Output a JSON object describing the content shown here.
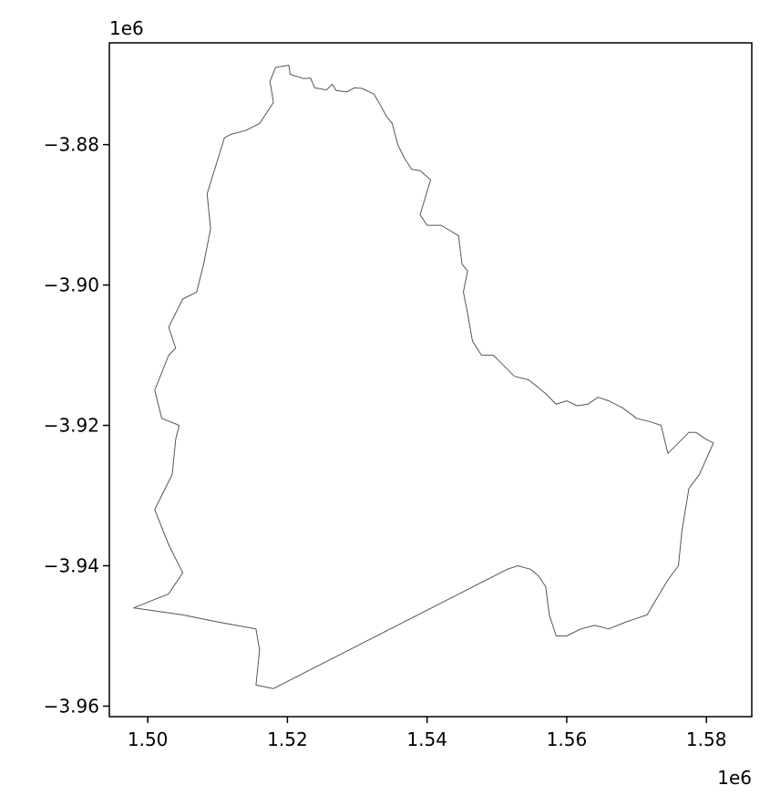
{
  "chart_data": {
    "type": "map",
    "x_offset_label": "1e6",
    "y_offset_label": "1e6",
    "xlim": [
      1.4945,
      1.5865
    ],
    "ylim": [
      -3.9615,
      -3.8655
    ],
    "x_ticks": [
      {
        "value": 1.5,
        "label": "1.50"
      },
      {
        "value": 1.52,
        "label": "1.52"
      },
      {
        "value": 1.54,
        "label": "1.54"
      },
      {
        "value": 1.56,
        "label": "1.56"
      },
      {
        "value": 1.58,
        "label": "1.58"
      }
    ],
    "y_ticks": [
      {
        "value": -3.88,
        "label": "−3.88"
      },
      {
        "value": -3.9,
        "label": "−3.90"
      },
      {
        "value": -3.92,
        "label": "−3.92"
      },
      {
        "value": -3.94,
        "label": "−3.94"
      },
      {
        "value": -3.96,
        "label": "−3.96"
      }
    ],
    "grid": false,
    "boundary_color": "#555555",
    "boundary": [
      [
        1.5183,
        -3.869
      ],
      [
        1.5202,
        -3.8687
      ],
      [
        1.5204,
        -3.87
      ],
      [
        1.5224,
        -3.8706
      ],
      [
        1.5233,
        -3.8705
      ],
      [
        1.5239,
        -3.8719
      ],
      [
        1.5256,
        -3.8722
      ],
      [
        1.5264,
        -3.8714
      ],
      [
        1.527,
        -3.8723
      ],
      [
        1.5285,
        -3.8725
      ],
      [
        1.5296,
        -3.8719
      ],
      [
        1.5307,
        -3.872
      ],
      [
        1.5324,
        -3.8728
      ],
      [
        1.5335,
        -3.8747
      ],
      [
        1.5342,
        -3.876
      ],
      [
        1.535,
        -3.877
      ],
      [
        1.5358,
        -3.88
      ],
      [
        1.5368,
        -3.882
      ],
      [
        1.5378,
        -3.8835
      ],
      [
        1.539,
        -3.8837
      ],
      [
        1.5405,
        -3.885
      ],
      [
        1.539,
        -3.89
      ],
      [
        1.54,
        -3.8915
      ],
      [
        1.542,
        -3.8915
      ],
      [
        1.5432,
        -3.8922
      ],
      [
        1.5445,
        -3.893
      ],
      [
        1.545,
        -3.897
      ],
      [
        1.5458,
        -3.898
      ],
      [
        1.5452,
        -3.901
      ],
      [
        1.5458,
        -3.904
      ],
      [
        1.5465,
        -3.908
      ],
      [
        1.5478,
        -3.91
      ],
      [
        1.5495,
        -3.91
      ],
      [
        1.5505,
        -3.911
      ],
      [
        1.5525,
        -3.913
      ],
      [
        1.5545,
        -3.9135
      ],
      [
        1.5558,
        -3.9145
      ],
      [
        1.557,
        -3.9155
      ],
      [
        1.5585,
        -3.917
      ],
      [
        1.56,
        -3.9165
      ],
      [
        1.5615,
        -3.9172
      ],
      [
        1.563,
        -3.917
      ],
      [
        1.5645,
        -3.916
      ],
      [
        1.566,
        -3.9165
      ],
      [
        1.568,
        -3.9175
      ],
      [
        1.57,
        -3.919
      ],
      [
        1.572,
        -3.9195
      ],
      [
        1.5735,
        -3.92
      ],
      [
        1.5745,
        -3.924
      ],
      [
        1.576,
        -3.9225
      ],
      [
        1.5775,
        -3.921
      ],
      [
        1.5785,
        -3.921
      ],
      [
        1.58,
        -3.922
      ],
      [
        1.581,
        -3.9225
      ],
      [
        1.579,
        -3.927
      ],
      [
        1.5775,
        -3.929
      ],
      [
        1.5765,
        -3.935
      ],
      [
        1.576,
        -3.94
      ],
      [
        1.5745,
        -3.942
      ],
      [
        1.573,
        -3.9445
      ],
      [
        1.5715,
        -3.947
      ],
      [
        1.57,
        -3.9475
      ],
      [
        1.5685,
        -3.948
      ],
      [
        1.566,
        -3.949
      ],
      [
        1.564,
        -3.9485
      ],
      [
        1.562,
        -3.949
      ],
      [
        1.56,
        -3.95
      ],
      [
        1.5585,
        -3.95
      ],
      [
        1.5575,
        -3.947
      ],
      [
        1.557,
        -3.943
      ],
      [
        1.556,
        -3.9415
      ],
      [
        1.5548,
        -3.9405
      ],
      [
        1.553,
        -3.94
      ],
      [
        1.5515,
        -3.9405
      ],
      [
        1.518,
        -3.9575
      ],
      [
        1.5155,
        -3.957
      ],
      [
        1.516,
        -3.952
      ],
      [
        1.5155,
        -3.949
      ],
      [
        1.51,
        -3.948
      ],
      [
        1.505,
        -3.947
      ],
      [
        1.498,
        -3.946
      ],
      [
        1.503,
        -3.944
      ],
      [
        1.505,
        -3.941
      ],
      [
        1.503,
        -3.937
      ],
      [
        1.501,
        -3.932
      ],
      [
        1.5035,
        -3.927
      ],
      [
        1.504,
        -3.922
      ],
      [
        1.5045,
        -3.92
      ],
      [
        1.502,
        -3.919
      ],
      [
        1.501,
        -3.915
      ],
      [
        1.503,
        -3.91
      ],
      [
        1.504,
        -3.909
      ],
      [
        1.503,
        -3.906
      ],
      [
        1.505,
        -3.902
      ],
      [
        1.507,
        -3.901
      ],
      [
        1.508,
        -3.897
      ],
      [
        1.509,
        -3.892
      ],
      [
        1.5085,
        -3.887
      ],
      [
        1.511,
        -3.879
      ],
      [
        1.512,
        -3.8785
      ],
      [
        1.514,
        -3.878
      ],
      [
        1.516,
        -3.877
      ],
      [
        1.518,
        -3.874
      ],
      [
        1.5175,
        -3.871
      ],
      [
        1.5183,
        -3.869
      ]
    ]
  }
}
